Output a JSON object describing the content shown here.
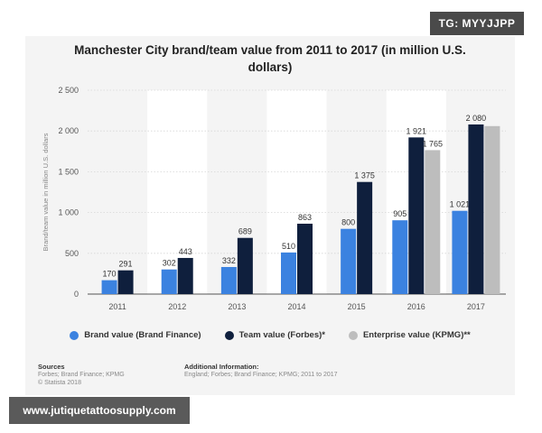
{
  "chart_data": {
    "type": "bar",
    "title": "Manchester City brand/team value from 2011 to 2017 (in million U.S. dollars)",
    "title_lines": [
      "Manchester City brand/team value from 2011 to 2017 (in million U.S.",
      "dollars)"
    ],
    "ylabel": "Brand/team value in million U.S. dollars",
    "xlabel": "",
    "ylim": [
      0,
      2500
    ],
    "yticks": [
      0,
      500,
      1000,
      1500,
      2000,
      2500
    ],
    "ytick_labels": [
      "0",
      "500",
      "1 000",
      "1 500",
      "2 000",
      "2 500"
    ],
    "categories": [
      "2011",
      "2012",
      "2013",
      "2014",
      "2015",
      "2016",
      "2017"
    ],
    "series": [
      {
        "name": "Brand value (Brand Finance)",
        "color": "#3b82e0",
        "values": [
          170,
          302,
          332,
          510,
          800,
          905,
          1021
        ],
        "labels": [
          "170",
          "302",
          "332",
          "510",
          "800",
          "905",
          "1 021"
        ]
      },
      {
        "name": "Team value (Forbes)*",
        "color": "#0f1f3d",
        "values": [
          291,
          443,
          689,
          863,
          1375,
          1921,
          2080
        ],
        "labels": [
          "291",
          "443",
          "689",
          "863",
          "1 375",
          "1 921",
          "2 080"
        ]
      },
      {
        "name": "Enterprise value (KPMG)**",
        "color": "#bdbdbd",
        "values": [
          null,
          null,
          null,
          null,
          null,
          1765,
          2060
        ],
        "labels": [
          null,
          null,
          null,
          null,
          null,
          "1 765",
          null
        ]
      }
    ],
    "grid": true,
    "legend_position": "bottom"
  },
  "sources": {
    "heading": "Sources",
    "lines": [
      "Forbes; Brand Finance; KPMG",
      "© Statista 2018"
    ]
  },
  "additional_info": {
    "heading": "Additional Information:",
    "text": "England; Forbes; Brand Finance; KPMG; 2011 to 2017"
  },
  "watermarks": {
    "top": "TG: MYYJJPP",
    "bottom": "www.jutiquetattoosupply.com"
  }
}
